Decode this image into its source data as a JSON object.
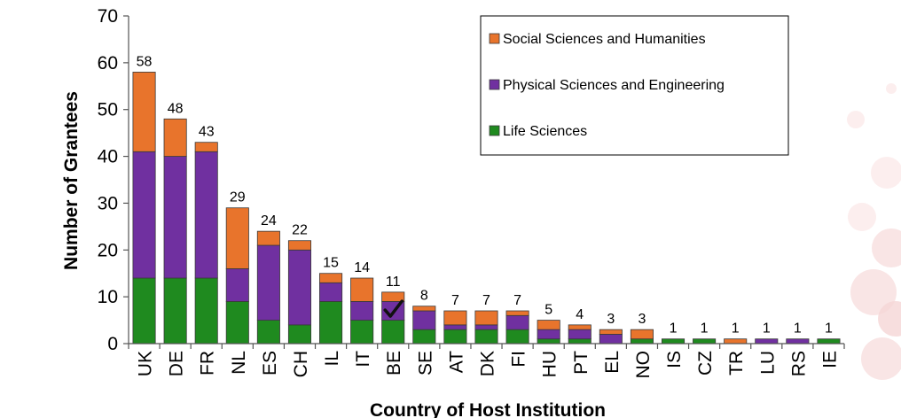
{
  "chart_data": {
    "type": "bar",
    "stacked": true,
    "title": "",
    "xlabel": "Country of Host Institution",
    "ylabel": "Number of Grantees",
    "ylim": [
      0,
      70
    ],
    "yticks": [
      0,
      10,
      20,
      30,
      40,
      50,
      60,
      70
    ],
    "grid": false,
    "legend_position": "top-right",
    "categories": [
      "UK",
      "DE",
      "FR",
      "NL",
      "ES",
      "CH",
      "IL",
      "IT",
      "BE",
      "SE",
      "AT",
      "DK",
      "FI",
      "HU",
      "PT",
      "EL",
      "NO",
      "IS",
      "CZ",
      "TR",
      "LU",
      "RS",
      "IE"
    ],
    "totals": [
      58,
      48,
      43,
      29,
      24,
      22,
      15,
      14,
      11,
      8,
      7,
      7,
      7,
      5,
      4,
      3,
      3,
      1,
      1,
      1,
      1,
      1,
      1
    ],
    "total_labels": [
      "58",
      "48",
      "43",
      "29",
      "24",
      "22",
      "15",
      "14",
      "11",
      "8",
      "7",
      "7",
      "7",
      "5",
      "4",
      "3",
      "3",
      "1",
      "1",
      "1",
      "1",
      "1",
      "1"
    ],
    "series": [
      {
        "name": "Life Sciences",
        "color": "#1f8a1f",
        "values": [
          14,
          14,
          14,
          9,
          5,
          4,
          9,
          5,
          5,
          3,
          3,
          3,
          3,
          1,
          1,
          0,
          1,
          1,
          1,
          0,
          0,
          0,
          1
        ]
      },
      {
        "name": "Physical Sciences and Engineering",
        "color": "#7030a0",
        "values": [
          27,
          26,
          27,
          7,
          16,
          16,
          4,
          4,
          4,
          4,
          1,
          1,
          3,
          2,
          2,
          2,
          0,
          0,
          0,
          0,
          1,
          1,
          0
        ]
      },
      {
        "name": "Social Sciences and Humanities",
        "color": "#e8742c",
        "values": [
          17,
          8,
          2,
          13,
          3,
          2,
          2,
          5,
          2,
          1,
          3,
          3,
          1,
          2,
          1,
          1,
          2,
          0,
          0,
          1,
          0,
          0,
          0
        ]
      }
    ],
    "legend_order": [
      "Social Sciences and Humanities",
      "Physical Sciences and Engineering",
      "Life Sciences"
    ],
    "annotations": [
      {
        "category": "BE",
        "mark": "checkmark-icon"
      }
    ]
  }
}
